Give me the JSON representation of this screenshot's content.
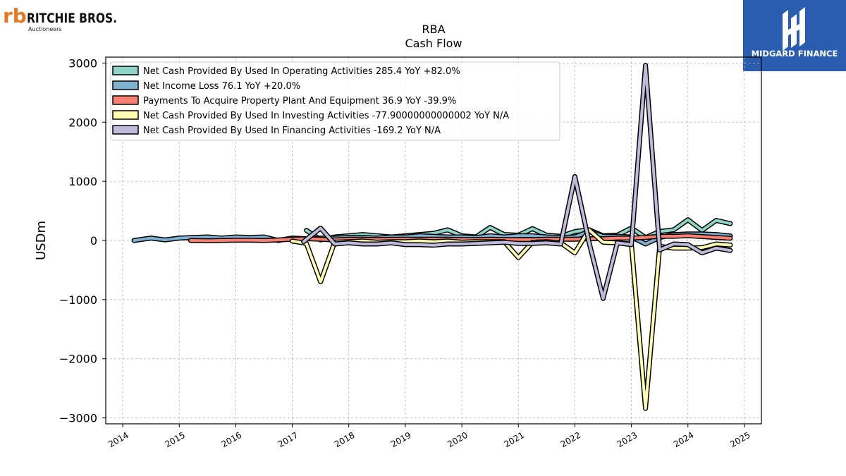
{
  "logos": {
    "company": {
      "mark": "rb",
      "name": "RITCHIE BROS.",
      "sub": "Auctioneers",
      "color": "#e87722"
    },
    "brand": {
      "name": "MIDGARD FINANCE",
      "color": "#2a5db0"
    }
  },
  "chart_data": {
    "type": "line",
    "title": "RBA",
    "subtitle": "Cash Flow",
    "xlabel": "",
    "ylabel": "USDm",
    "xlim": [
      2013.7,
      2025.3
    ],
    "ylim": [
      -3100,
      3100
    ],
    "xticks": [
      2014,
      2015,
      2016,
      2017,
      2018,
      2019,
      2020,
      2021,
      2022,
      2023,
      2024,
      2025
    ],
    "yticks": [
      -3000,
      -2000,
      -1000,
      0,
      1000,
      2000,
      3000
    ],
    "ytick_labels": [
      "−3000",
      "−2000",
      "−1000",
      "0",
      "1000",
      "2000",
      "3000"
    ],
    "grid": true,
    "legend_position": "upper-left",
    "series": [
      {
        "name": "Net Cash Provided By Used In Operating Activities  285.4 YoY +82.0%",
        "color": "#8dd3c7",
        "points": [
          [
            2017.25,
            170
          ],
          [
            2017.5,
            10
          ],
          [
            2017.75,
            60
          ],
          [
            2018.0,
            80
          ],
          [
            2018.25,
            100
          ],
          [
            2018.5,
            80
          ],
          [
            2018.75,
            60
          ],
          [
            2019.0,
            80
          ],
          [
            2019.25,
            100
          ],
          [
            2019.5,
            120
          ],
          [
            2019.75,
            180
          ],
          [
            2020.0,
            80
          ],
          [
            2020.25,
            60
          ],
          [
            2020.5,
            220
          ],
          [
            2020.75,
            100
          ],
          [
            2021.0,
            90
          ],
          [
            2021.25,
            200
          ],
          [
            2021.5,
            90
          ],
          [
            2021.75,
            70
          ],
          [
            2022.0,
            150
          ],
          [
            2022.25,
            180
          ],
          [
            2022.5,
            80
          ],
          [
            2022.75,
            90
          ],
          [
            2023.0,
            210
          ],
          [
            2023.25,
            50
          ],
          [
            2023.5,
            150
          ],
          [
            2023.75,
            180
          ],
          [
            2024.0,
            350
          ],
          [
            2024.25,
            170
          ],
          [
            2024.5,
            340
          ],
          [
            2024.75,
            285.4
          ]
        ]
      },
      {
        "name": "Net Income Loss  76.1 YoY +20.0%",
        "color": "#80b1d3",
        "points": [
          [
            2014.2,
            0
          ],
          [
            2014.5,
            40
          ],
          [
            2014.75,
            10
          ],
          [
            2015.0,
            40
          ],
          [
            2015.25,
            50
          ],
          [
            2015.5,
            60
          ],
          [
            2015.75,
            40
          ],
          [
            2016.0,
            60
          ],
          [
            2016.25,
            50
          ],
          [
            2016.5,
            60
          ],
          [
            2016.75,
            0
          ],
          [
            2017.0,
            40
          ],
          [
            2017.25,
            30
          ],
          [
            2017.5,
            40
          ],
          [
            2017.75,
            40
          ],
          [
            2018.0,
            50
          ],
          [
            2018.25,
            50
          ],
          [
            2018.5,
            40
          ],
          [
            2018.75,
            60
          ],
          [
            2019.0,
            60
          ],
          [
            2019.25,
            80
          ],
          [
            2019.5,
            70
          ],
          [
            2019.75,
            60
          ],
          [
            2020.0,
            60
          ],
          [
            2020.25,
            50
          ],
          [
            2020.5,
            80
          ],
          [
            2020.75,
            60
          ],
          [
            2021.0,
            80
          ],
          [
            2021.25,
            80
          ],
          [
            2021.5,
            60
          ],
          [
            2021.75,
            50
          ],
          [
            2022.0,
            60
          ],
          [
            2022.25,
            150
          ],
          [
            2022.5,
            70
          ],
          [
            2022.75,
            70
          ],
          [
            2023.0,
            60
          ],
          [
            2023.25,
            -60
          ],
          [
            2023.5,
            50
          ],
          [
            2023.75,
            100
          ],
          [
            2024.0,
            110
          ],
          [
            2024.25,
            110
          ],
          [
            2024.5,
            100
          ],
          [
            2024.75,
            76.1
          ]
        ]
      },
      {
        "name": "Payments To Acquire Property Plant And Equipment  36.9 YoY -39.9%",
        "color": "#fb8072",
        "points": [
          [
            2015.2,
            0
          ],
          [
            2015.5,
            -5
          ],
          [
            2015.75,
            0
          ],
          [
            2016.0,
            5
          ],
          [
            2016.25,
            5
          ],
          [
            2016.5,
            0
          ],
          [
            2016.75,
            10
          ],
          [
            2017.0,
            20
          ],
          [
            2017.25,
            30
          ],
          [
            2017.5,
            20
          ],
          [
            2017.75,
            10
          ],
          [
            2018.0,
            20
          ],
          [
            2018.25,
            20
          ],
          [
            2018.5,
            15
          ],
          [
            2018.75,
            20
          ],
          [
            2019.0,
            20
          ],
          [
            2019.25,
            20
          ],
          [
            2019.5,
            20
          ],
          [
            2019.75,
            20
          ],
          [
            2020.0,
            15
          ],
          [
            2020.25,
            15
          ],
          [
            2020.5,
            20
          ],
          [
            2020.75,
            15
          ],
          [
            2021.0,
            15
          ],
          [
            2021.25,
            15
          ],
          [
            2021.5,
            20
          ],
          [
            2021.75,
            20
          ],
          [
            2022.0,
            20
          ],
          [
            2022.25,
            30
          ],
          [
            2022.5,
            30
          ],
          [
            2022.75,
            40
          ],
          [
            2023.0,
            40
          ],
          [
            2023.25,
            50
          ],
          [
            2023.5,
            70
          ],
          [
            2023.75,
            70
          ],
          [
            2024.0,
            80
          ],
          [
            2024.25,
            65
          ],
          [
            2024.5,
            50
          ],
          [
            2024.75,
            36.9
          ]
        ]
      },
      {
        "name": "Net Cash Provided By Used In Investing Activities  -77.90000000000002 YoY N/A",
        "color": "#ffffb3",
        "points": [
          [
            2017.0,
            -10
          ],
          [
            2017.25,
            -50
          ],
          [
            2017.5,
            -700
          ],
          [
            2017.75,
            -30
          ],
          [
            2018.0,
            -20
          ],
          [
            2018.25,
            -10
          ],
          [
            2018.5,
            -30
          ],
          [
            2018.75,
            -20
          ],
          [
            2019.0,
            -20
          ],
          [
            2019.25,
            -10
          ],
          [
            2019.5,
            -20
          ],
          [
            2019.75,
            -10
          ],
          [
            2020.0,
            -30
          ],
          [
            2020.25,
            -20
          ],
          [
            2020.5,
            -20
          ],
          [
            2020.75,
            -20
          ],
          [
            2021.0,
            -290
          ],
          [
            2021.25,
            -30
          ],
          [
            2021.5,
            -20
          ],
          [
            2021.75,
            -40
          ],
          [
            2022.0,
            -210
          ],
          [
            2022.25,
            180
          ],
          [
            2022.5,
            -30
          ],
          [
            2022.75,
            -40
          ],
          [
            2023.0,
            -60
          ],
          [
            2023.25,
            -2840
          ],
          [
            2023.5,
            -100
          ],
          [
            2023.75,
            -130
          ],
          [
            2024.0,
            -130
          ],
          [
            2024.25,
            -120
          ],
          [
            2024.5,
            -60
          ],
          [
            2024.75,
            -77.9
          ]
        ]
      },
      {
        "name": "Net Cash Provided By Used In Financing Activities  -169.2 YoY N/A",
        "color": "#bebada",
        "points": [
          [
            2017.2,
            -20
          ],
          [
            2017.5,
            210
          ],
          [
            2017.75,
            -60
          ],
          [
            2018.0,
            -40
          ],
          [
            2018.25,
            -60
          ],
          [
            2018.5,
            -60
          ],
          [
            2018.75,
            -40
          ],
          [
            2019.0,
            -70
          ],
          [
            2019.25,
            -70
          ],
          [
            2019.5,
            -80
          ],
          [
            2019.75,
            -60
          ],
          [
            2020.0,
            -60
          ],
          [
            2020.25,
            -50
          ],
          [
            2020.5,
            -40
          ],
          [
            2020.75,
            -30
          ],
          [
            2021.0,
            -50
          ],
          [
            2021.25,
            -50
          ],
          [
            2021.5,
            -40
          ],
          [
            2021.75,
            -60
          ],
          [
            2022.0,
            1080
          ],
          [
            2022.25,
            -30
          ],
          [
            2022.5,
            -980
          ],
          [
            2022.75,
            -40
          ],
          [
            2023.0,
            -70
          ],
          [
            2023.25,
            2960
          ],
          [
            2023.5,
            -160
          ],
          [
            2023.75,
            -60
          ],
          [
            2024.0,
            -70
          ],
          [
            2024.25,
            -210
          ],
          [
            2024.5,
            -130
          ],
          [
            2024.75,
            -169.2
          ]
        ]
      }
    ]
  }
}
